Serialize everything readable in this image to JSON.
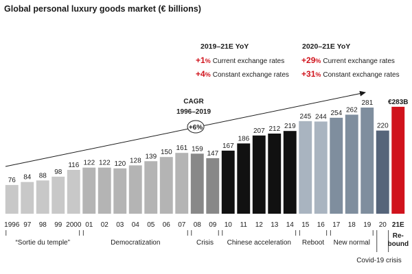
{
  "chart_data": {
    "type": "bar",
    "title": "Global personal luxury goods market (€ billions)",
    "categories": [
      "1996",
      "97",
      "98",
      "99",
      "2000",
      "01",
      "02",
      "03",
      "04",
      "05",
      "06",
      "07",
      "08",
      "09",
      "10",
      "11",
      "12",
      "13",
      "14",
      "15",
      "16",
      "17",
      "18",
      "19",
      "20",
      "21E"
    ],
    "values": [
      76,
      84,
      88,
      98,
      116,
      122,
      122,
      120,
      128,
      139,
      150,
      161,
      159,
      147,
      167,
      186,
      207,
      212,
      219,
      245,
      244,
      254,
      262,
      281,
      220,
      283
    ],
    "value_labels": [
      "76",
      "84",
      "88",
      "98",
      "116",
      "122",
      "122",
      "120",
      "128",
      "139",
      "150",
      "161",
      "159",
      "147",
      "167",
      "186",
      "207",
      "212",
      "219",
      "245",
      "244",
      "254",
      "262",
      "281",
      "220",
      "€283B"
    ],
    "ylim": [
      0,
      290
    ],
    "phases": [
      {
        "label": "“Sortie du temple”",
        "start": 0,
        "end": 4,
        "color": "#c8c8c8"
      },
      {
        "label": "Democratization",
        "start": 5,
        "end": 11,
        "color": "#b4b4b4"
      },
      {
        "label": "Crisis",
        "start": 12,
        "end": 13,
        "color": "#888888"
      },
      {
        "label": "Chinese acceleration",
        "start": 14,
        "end": 18,
        "color": "#111111"
      },
      {
        "label": "Reboot",
        "start": 19,
        "end": 20,
        "color": "#a9b4c0"
      },
      {
        "label": "New normal",
        "start": 21,
        "end": 23,
        "color": "#7f8e9e"
      },
      {
        "label": "Covid-19 crisis",
        "start": 24,
        "end": 24,
        "color": "#56657a"
      },
      {
        "label": "Re-\nbound",
        "start": 25,
        "end": 25,
        "color": "#d0131c"
      }
    ],
    "highlight_color": "#d0131c",
    "cagr": {
      "label_line1": "CAGR",
      "label_line2": "1996–2019",
      "value": "+6%"
    },
    "yoy_blocks": [
      {
        "heading": "2019–21E YoY",
        "rows": [
          {
            "sign": "+",
            "num": "1",
            "pct": "%",
            "text": "Current exchange rates"
          },
          {
            "sign": "+",
            "num": "4",
            "pct": "%",
            "text": "Constant exchange rates"
          }
        ]
      },
      {
        "heading": "2020–21E YoY",
        "rows": [
          {
            "sign": "+",
            "num": "29",
            "pct": "%",
            "text": "Current exchange rates"
          },
          {
            "sign": "+",
            "num": "31",
            "pct": "%",
            "text": "Constant exchange rates"
          }
        ]
      }
    ]
  }
}
